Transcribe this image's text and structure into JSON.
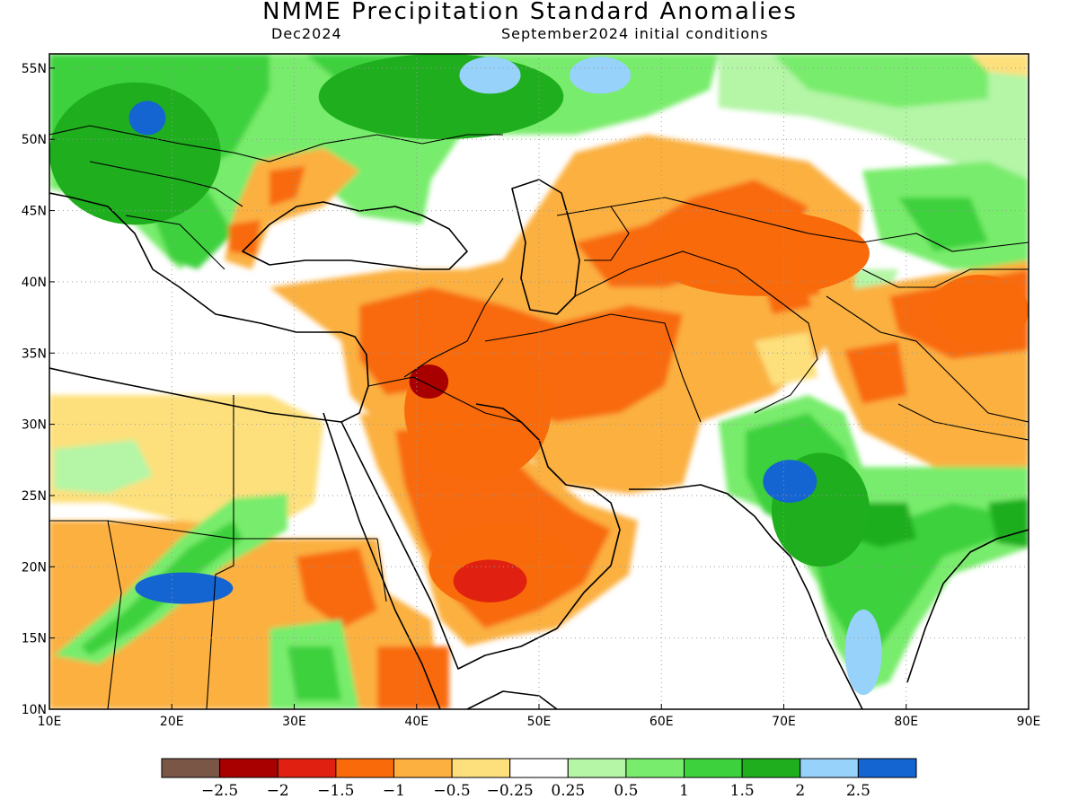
{
  "title": "NMME Precipitation Standard Anomalies",
  "subtitle_target": "Dec2024",
  "subtitle_init": "September2024 initial conditions",
  "map": {
    "lon_range": [
      10,
      90
    ],
    "lat_range": [
      10,
      56
    ],
    "lon_ticks": [
      {
        "value": 10,
        "label": "10E"
      },
      {
        "value": 20,
        "label": "20E"
      },
      {
        "value": 30,
        "label": "30E"
      },
      {
        "value": 40,
        "label": "40E"
      },
      {
        "value": 50,
        "label": "50E"
      },
      {
        "value": 60,
        "label": "60E"
      },
      {
        "value": 70,
        "label": "70E"
      },
      {
        "value": 80,
        "label": "80E"
      },
      {
        "value": 90,
        "label": "90E"
      }
    ],
    "lat_ticks": [
      {
        "value": 10,
        "label": "10N"
      },
      {
        "value": 15,
        "label": "15N"
      },
      {
        "value": 20,
        "label": "20N"
      },
      {
        "value": 25,
        "label": "25N"
      },
      {
        "value": 30,
        "label": "30N"
      },
      {
        "value": 35,
        "label": "35N"
      },
      {
        "value": 40,
        "label": "40N"
      },
      {
        "value": 45,
        "label": "45N"
      },
      {
        "value": 50,
        "label": "50N"
      },
      {
        "value": 55,
        "label": "55N"
      }
    ],
    "gridlines": "dotted"
  },
  "colorbar": {
    "colors": [
      "#7a5647",
      "#a80000",
      "#e02010",
      "#f86a0a",
      "#fbb040",
      "#fde07c",
      "#ffffff",
      "#b4f5a6",
      "#78ec6c",
      "#3ed13e",
      "#1fae1e",
      "#96d2fa",
      "#1464d2"
    ],
    "labels": [
      "-2.5",
      "-2",
      "-1.5",
      "-1",
      "-0.5",
      "-0.25",
      "0.25",
      "0.5",
      "1",
      "1.5",
      "2",
      "2.5"
    ]
  },
  "anomaly_regions": [
    {
      "level": 10,
      "color": "#1fae1e",
      "lon": 17,
      "lat": 49,
      "rx": 7,
      "ry": 5
    },
    {
      "level": 12,
      "color": "#1464d2",
      "lon": 18,
      "lat": 51.5,
      "rx": 1.5,
      "ry": 1.2
    },
    {
      "level": 10,
      "color": "#1fae1e",
      "lon": 42,
      "lat": 53,
      "rx": 10,
      "ry": 3
    },
    {
      "level": 11,
      "color": "#96d2fa",
      "lon": 46,
      "lat": 54.5,
      "rx": 2.5,
      "ry": 1.3
    },
    {
      "level": 11,
      "color": "#96d2fa",
      "lon": 55,
      "lat": 54.5,
      "rx": 2.5,
      "ry": 1.3
    },
    {
      "level": 3,
      "color": "#f86a0a",
      "lon": 45,
      "lat": 31,
      "rx": 6,
      "ry": 5
    },
    {
      "level": 1,
      "color": "#a80000",
      "lon": 41,
      "lat": 33,
      "rx": 1.6,
      "ry": 1.2
    },
    {
      "level": 3,
      "color": "#f86a0a",
      "lon": 47,
      "lat": 20,
      "rx": 6,
      "ry": 3
    },
    {
      "level": 2,
      "color": "#e02010",
      "lon": 46,
      "lat": 19,
      "rx": 3,
      "ry": 1.5
    },
    {
      "level": 3,
      "color": "#f86a0a",
      "lon": 68,
      "lat": 42,
      "rx": 9,
      "ry": 3
    },
    {
      "level": 3,
      "color": "#f86a0a",
      "lon": 86,
      "lat": 38,
      "rx": 4,
      "ry": 2.5
    },
    {
      "level": 10,
      "color": "#1fae1e",
      "lon": 73,
      "lat": 24,
      "rx": 4,
      "ry": 4
    },
    {
      "level": 12,
      "color": "#1464d2",
      "lon": 70.5,
      "lat": 26,
      "rx": 2.2,
      "ry": 1.5
    },
    {
      "level": 11,
      "color": "#96d2fa",
      "lon": 76.5,
      "lat": 14,
      "rx": 1.5,
      "ry": 3
    },
    {
      "level": 12,
      "color": "#1464d2",
      "lon": 21,
      "lat": 18.5,
      "rx": 4,
      "ry": 1.1
    }
  ]
}
